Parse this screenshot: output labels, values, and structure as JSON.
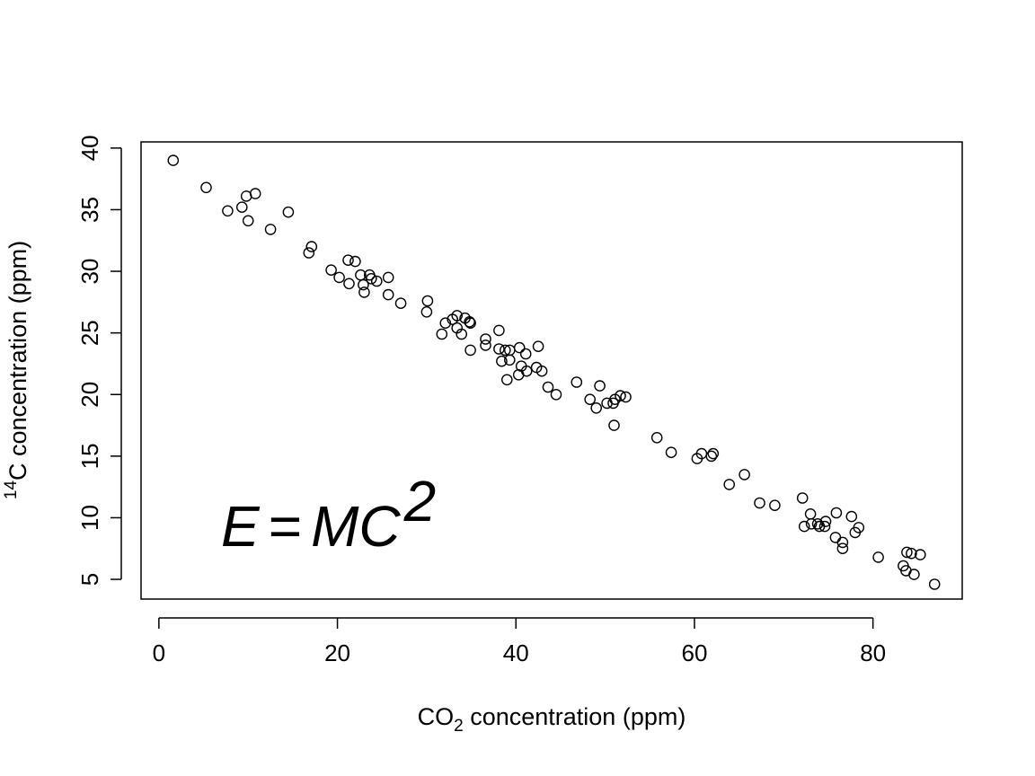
{
  "chart_data": {
    "type": "scatter",
    "title": "",
    "xlabel": {
      "prefix": "CO",
      "subscript": "2",
      "suffix": " concentration (ppm)"
    },
    "ylabel": {
      "superscript": "14",
      "prefix": "C",
      "suffix": " concentration (ppm)"
    },
    "xlim": [
      -2,
      90
    ],
    "ylim": [
      3.4,
      40.5
    ],
    "xticks": [
      0,
      20,
      40,
      60,
      80
    ],
    "yticks": [
      5,
      10,
      15,
      20,
      25,
      30,
      35,
      40
    ],
    "xtick_labels": [
      "0",
      "20",
      "40",
      "60",
      "80"
    ],
    "ytick_labels": [
      "5",
      "10",
      "15",
      "20",
      "25",
      "30",
      "35",
      "40"
    ],
    "grid": false,
    "legend": "none",
    "marker": "open-circle",
    "annotation": {
      "lhs": "E",
      "op": "=",
      "rhs": "MC",
      "exponent": "2"
    },
    "points": [
      [
        1.6,
        39.0
      ],
      [
        5.3,
        36.8
      ],
      [
        9.8,
        36.1
      ],
      [
        10.8,
        36.3
      ],
      [
        9.3,
        35.2
      ],
      [
        7.7,
        34.9
      ],
      [
        14.5,
        34.8
      ],
      [
        10.0,
        34.1
      ],
      [
        12.5,
        33.4
      ],
      [
        17.1,
        32.0
      ],
      [
        16.8,
        31.5
      ],
      [
        21.2,
        30.9
      ],
      [
        22.0,
        30.8
      ],
      [
        19.3,
        30.1
      ],
      [
        22.6,
        29.7
      ],
      [
        23.6,
        29.7
      ],
      [
        20.2,
        29.5
      ],
      [
        25.7,
        29.5
      ],
      [
        23.8,
        29.4
      ],
      [
        24.4,
        29.2
      ],
      [
        21.3,
        29.0
      ],
      [
        22.9,
        28.9
      ],
      [
        23.0,
        28.3
      ],
      [
        25.7,
        28.1
      ],
      [
        27.1,
        27.4
      ],
      [
        30.1,
        27.6
      ],
      [
        30.0,
        26.7
      ],
      [
        33.4,
        26.4
      ],
      [
        34.3,
        26.2
      ],
      [
        32.9,
        26.1
      ],
      [
        34.8,
        25.9
      ],
      [
        32.1,
        25.8
      ],
      [
        34.9,
        25.8
      ],
      [
        33.4,
        25.4
      ],
      [
        38.1,
        25.2
      ],
      [
        31.7,
        24.9
      ],
      [
        33.9,
        24.9
      ],
      [
        36.6,
        24.5
      ],
      [
        36.6,
        24.0
      ],
      [
        42.5,
        23.9
      ],
      [
        40.4,
        23.8
      ],
      [
        34.9,
        23.6
      ],
      [
        38.1,
        23.7
      ],
      [
        38.8,
        23.6
      ],
      [
        39.3,
        23.6
      ],
      [
        41.1,
        23.3
      ],
      [
        38.4,
        22.7
      ],
      [
        39.3,
        22.8
      ],
      [
        40.6,
        22.3
      ],
      [
        42.3,
        22.2
      ],
      [
        42.9,
        21.9
      ],
      [
        41.2,
        21.9
      ],
      [
        40.3,
        21.6
      ],
      [
        39.0,
        21.2
      ],
      [
        43.6,
        20.6
      ],
      [
        44.5,
        20.0
      ],
      [
        46.8,
        21.0
      ],
      [
        49.4,
        20.7
      ],
      [
        51.7,
        19.9
      ],
      [
        52.3,
        19.8
      ],
      [
        48.3,
        19.6
      ],
      [
        51.1,
        19.6
      ],
      [
        50.2,
        19.3
      ],
      [
        50.9,
        19.3
      ],
      [
        49.0,
        18.9
      ],
      [
        51.0,
        17.5
      ],
      [
        55.8,
        16.5
      ],
      [
        57.4,
        15.3
      ],
      [
        60.8,
        15.2
      ],
      [
        62.1,
        15.2
      ],
      [
        61.9,
        15.0
      ],
      [
        60.3,
        14.8
      ],
      [
        65.6,
        13.5
      ],
      [
        63.9,
        12.7
      ],
      [
        67.3,
        11.2
      ],
      [
        69.0,
        11.0
      ],
      [
        72.1,
        11.6
      ],
      [
        73.0,
        10.3
      ],
      [
        75.9,
        10.4
      ],
      [
        77.6,
        10.1
      ],
      [
        72.3,
        9.3
      ],
      [
        73.1,
        9.5
      ],
      [
        74.0,
        9.3
      ],
      [
        74.7,
        9.7
      ],
      [
        73.8,
        9.5
      ],
      [
        74.6,
        9.3
      ],
      [
        78.4,
        9.2
      ],
      [
        78.0,
        8.8
      ],
      [
        75.8,
        8.4
      ],
      [
        76.6,
        8.0
      ],
      [
        76.6,
        7.5
      ],
      [
        80.6,
        6.8
      ],
      [
        83.8,
        7.2
      ],
      [
        84.3,
        7.1
      ],
      [
        85.3,
        7.0
      ],
      [
        83.4,
        6.1
      ],
      [
        83.7,
        5.7
      ],
      [
        84.6,
        5.4
      ],
      [
        86.9,
        4.6
      ]
    ]
  }
}
